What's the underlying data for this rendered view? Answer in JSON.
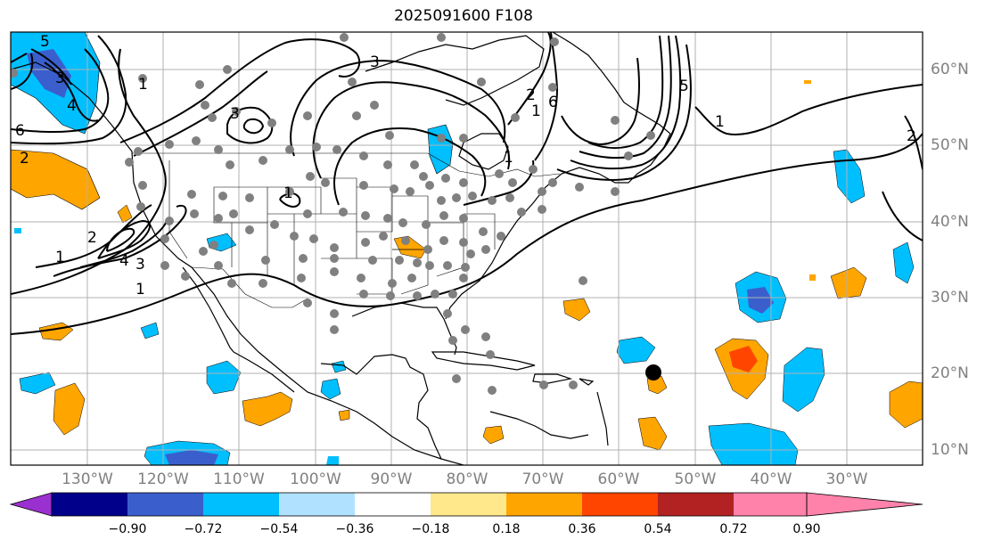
{
  "title": "2025091600 F108",
  "lat_labels": [
    "60°N",
    "50°N",
    "40°N",
    "30°N",
    "20°N",
    "10°N"
  ],
  "lon_labels": [
    "130°W",
    "120°W",
    "110°W",
    "100°W",
    "90°W",
    "80°W",
    "70°W",
    "60°W",
    "50°W",
    "40°W",
    "30°W"
  ],
  "colorbar": {
    "ticks": [
      "−0.90",
      "−0.72",
      "−0.54",
      "−0.36",
      "−0.18",
      "0.18",
      "0.36",
      "0.54",
      "0.72",
      "0.90"
    ],
    "colors": [
      "#9b30d0",
      "#00008b",
      "#3a5fcd",
      "#00bfff",
      "#b0e2ff",
      "#ffffff",
      "#ffe88c",
      "#ffa500",
      "#ff4500",
      "#b22222",
      "#ff82ab"
    ]
  },
  "contour_labels": [
    "6",
    "3",
    "4",
    "5",
    "2",
    "1",
    "1",
    "2",
    "4",
    "3",
    "1",
    "3",
    "4",
    "6",
    "1",
    "3",
    "5",
    "1",
    "2",
    "1",
    "2",
    "1"
  ],
  "tropical_cyclone_marker": {
    "lat": 20.0,
    "lon": -55.5
  },
  "colors": {
    "station_dot": "#808080",
    "grid": "#b0b0b0",
    "positive": "#ffa500",
    "negative": "#00bfff",
    "strong_negative": "#3a5fcd",
    "strong_positive": "#ff4500"
  }
}
